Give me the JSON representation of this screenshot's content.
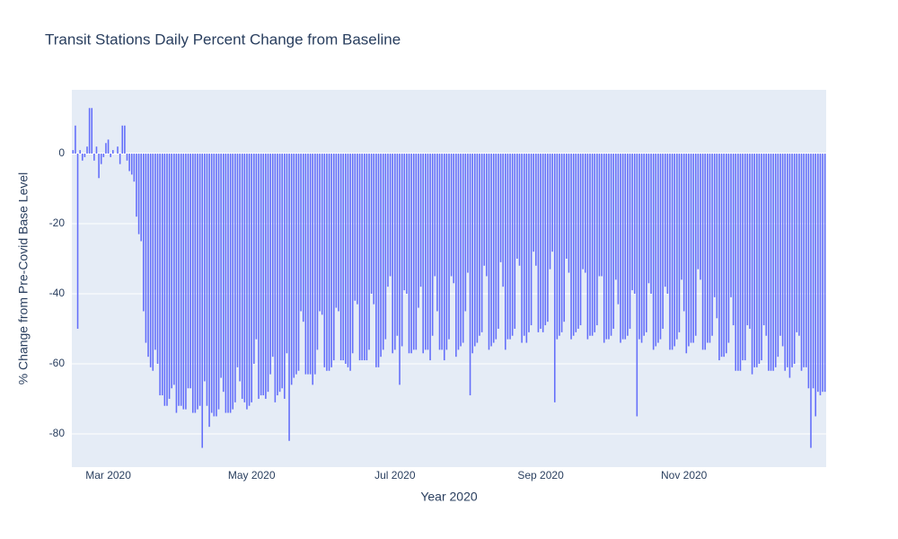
{
  "chart_data": {
    "type": "bar",
    "title": "Transit Stations Daily Percent Change from Baseline",
    "xlabel": "Year 2020",
    "ylabel": "% Change from Pre-Covid Base Level",
    "color": "#636efa",
    "grid": true,
    "xlim": [
      "2020-02-14T12:00:00Z",
      "2020-12-31T12:00:00Z"
    ],
    "xticks": [
      {
        "value": "2020-03-01",
        "label": "Mar 2020"
      },
      {
        "value": "2020-05-01",
        "label": "May 2020"
      },
      {
        "value": "2020-07-01",
        "label": "Jul 2020"
      },
      {
        "value": "2020-09-01",
        "label": "Sep 2020"
      },
      {
        "value": "2020-11-01",
        "label": "Nov 2020"
      }
    ],
    "ylim": [
      -89.5,
      18.2
    ],
    "yticks": [
      0,
      -20,
      -40,
      -60,
      -80
    ],
    "x": [
      "2020-02-15",
      "2020-02-16",
      "2020-02-17",
      "2020-02-18",
      "2020-02-19",
      "2020-02-20",
      "2020-02-21",
      "2020-02-22",
      "2020-02-23",
      "2020-02-24",
      "2020-02-25",
      "2020-02-26",
      "2020-02-27",
      "2020-02-28",
      "2020-02-29",
      "2020-03-01",
      "2020-03-02",
      "2020-03-03",
      "2020-03-04",
      "2020-03-05",
      "2020-03-06",
      "2020-03-07",
      "2020-03-08",
      "2020-03-09",
      "2020-03-10",
      "2020-03-11",
      "2020-03-12",
      "2020-03-13",
      "2020-03-14",
      "2020-03-15",
      "2020-03-16",
      "2020-03-17",
      "2020-03-18",
      "2020-03-19",
      "2020-03-20",
      "2020-03-21",
      "2020-03-22",
      "2020-03-23",
      "2020-03-24",
      "2020-03-25",
      "2020-03-26",
      "2020-03-27",
      "2020-03-28",
      "2020-03-29",
      "2020-03-30",
      "2020-03-31",
      "2020-04-01",
      "2020-04-02",
      "2020-04-03",
      "2020-04-04",
      "2020-04-05",
      "2020-04-06",
      "2020-04-07",
      "2020-04-08",
      "2020-04-09",
      "2020-04-10",
      "2020-04-11",
      "2020-04-12",
      "2020-04-13",
      "2020-04-14",
      "2020-04-15",
      "2020-04-16",
      "2020-04-17",
      "2020-04-18",
      "2020-04-19",
      "2020-04-20",
      "2020-04-21",
      "2020-04-22",
      "2020-04-23",
      "2020-04-24",
      "2020-04-25",
      "2020-04-26",
      "2020-04-27",
      "2020-04-28",
      "2020-04-29",
      "2020-04-30",
      "2020-05-01",
      "2020-05-02",
      "2020-05-03",
      "2020-05-04",
      "2020-05-05",
      "2020-05-06",
      "2020-05-07",
      "2020-05-08",
      "2020-05-09",
      "2020-05-10",
      "2020-05-11",
      "2020-05-12",
      "2020-05-13",
      "2020-05-14",
      "2020-05-15",
      "2020-05-16",
      "2020-05-17",
      "2020-05-18",
      "2020-05-19",
      "2020-05-20",
      "2020-05-21",
      "2020-05-22",
      "2020-05-23",
      "2020-05-24",
      "2020-05-25",
      "2020-05-26",
      "2020-05-27",
      "2020-05-28",
      "2020-05-29",
      "2020-05-30",
      "2020-05-31",
      "2020-06-01",
      "2020-06-02",
      "2020-06-03",
      "2020-06-04",
      "2020-06-05",
      "2020-06-06",
      "2020-06-07",
      "2020-06-08",
      "2020-06-09",
      "2020-06-10",
      "2020-06-11",
      "2020-06-12",
      "2020-06-13",
      "2020-06-14",
      "2020-06-15",
      "2020-06-16",
      "2020-06-17",
      "2020-06-18",
      "2020-06-19",
      "2020-06-20",
      "2020-06-21",
      "2020-06-22",
      "2020-06-23",
      "2020-06-24",
      "2020-06-25",
      "2020-06-26",
      "2020-06-27",
      "2020-06-28",
      "2020-06-29",
      "2020-06-30",
      "2020-07-01",
      "2020-07-02",
      "2020-07-03",
      "2020-07-04",
      "2020-07-05",
      "2020-07-06",
      "2020-07-07",
      "2020-07-08",
      "2020-07-09",
      "2020-07-10",
      "2020-07-11",
      "2020-07-12",
      "2020-07-13",
      "2020-07-14",
      "2020-07-15",
      "2020-07-16",
      "2020-07-17",
      "2020-07-18",
      "2020-07-19",
      "2020-07-20",
      "2020-07-21",
      "2020-07-22",
      "2020-07-23",
      "2020-07-24",
      "2020-07-25",
      "2020-07-26",
      "2020-07-27",
      "2020-07-28",
      "2020-07-29",
      "2020-07-30",
      "2020-07-31",
      "2020-08-01",
      "2020-08-02",
      "2020-08-03",
      "2020-08-04",
      "2020-08-05",
      "2020-08-06",
      "2020-08-07",
      "2020-08-08",
      "2020-08-09",
      "2020-08-10",
      "2020-08-11",
      "2020-08-12",
      "2020-08-13",
      "2020-08-14",
      "2020-08-15",
      "2020-08-16",
      "2020-08-17",
      "2020-08-18",
      "2020-08-19",
      "2020-08-20",
      "2020-08-21",
      "2020-08-22",
      "2020-08-23",
      "2020-08-24",
      "2020-08-25",
      "2020-08-26",
      "2020-08-27",
      "2020-08-28",
      "2020-08-29",
      "2020-08-30",
      "2020-08-31",
      "2020-09-01",
      "2020-09-02",
      "2020-09-03",
      "2020-09-04",
      "2020-09-05",
      "2020-09-06",
      "2020-09-07",
      "2020-09-08",
      "2020-09-09",
      "2020-09-10",
      "2020-09-11",
      "2020-09-12",
      "2020-09-13",
      "2020-09-14",
      "2020-09-15",
      "2020-09-16",
      "2020-09-17",
      "2020-09-18",
      "2020-09-19",
      "2020-09-20",
      "2020-09-21",
      "2020-09-22",
      "2020-09-23",
      "2020-09-24",
      "2020-09-25",
      "2020-09-26",
      "2020-09-27",
      "2020-09-28",
      "2020-09-29",
      "2020-09-30",
      "2020-10-01",
      "2020-10-02",
      "2020-10-03",
      "2020-10-04",
      "2020-10-05",
      "2020-10-06",
      "2020-10-07",
      "2020-10-08",
      "2020-10-09",
      "2020-10-10",
      "2020-10-11",
      "2020-10-12",
      "2020-10-13",
      "2020-10-14",
      "2020-10-15",
      "2020-10-16",
      "2020-10-17",
      "2020-10-18",
      "2020-10-19",
      "2020-10-20",
      "2020-10-21",
      "2020-10-22",
      "2020-10-23",
      "2020-10-24",
      "2020-10-25",
      "2020-10-26",
      "2020-10-27",
      "2020-10-28",
      "2020-10-29",
      "2020-10-30",
      "2020-10-31",
      "2020-11-01",
      "2020-11-02",
      "2020-11-03",
      "2020-11-04",
      "2020-11-05",
      "2020-11-06",
      "2020-11-07",
      "2020-11-08",
      "2020-11-09",
      "2020-11-10",
      "2020-11-11",
      "2020-11-12",
      "2020-11-13",
      "2020-11-14",
      "2020-11-15",
      "2020-11-16",
      "2020-11-17",
      "2020-11-18",
      "2020-11-19",
      "2020-11-20",
      "2020-11-21",
      "2020-11-22",
      "2020-11-23",
      "2020-11-24",
      "2020-11-25",
      "2020-11-26",
      "2020-11-27",
      "2020-11-28",
      "2020-11-29",
      "2020-11-30",
      "2020-12-01",
      "2020-12-02",
      "2020-12-03",
      "2020-12-04",
      "2020-12-05",
      "2020-12-06",
      "2020-12-07",
      "2020-12-08",
      "2020-12-09",
      "2020-12-10",
      "2020-12-11",
      "2020-12-12",
      "2020-12-13",
      "2020-12-14",
      "2020-12-15",
      "2020-12-16",
      "2020-12-17",
      "2020-12-18",
      "2020-12-19",
      "2020-12-20",
      "2020-12-21",
      "2020-12-22",
      "2020-12-23",
      "2020-12-24",
      "2020-12-25",
      "2020-12-26",
      "2020-12-27",
      "2020-12-28",
      "2020-12-29",
      "2020-12-30",
      "2020-12-31"
    ],
    "values": [
      1,
      8,
      -50,
      1,
      -2,
      -1,
      2,
      13,
      13,
      -2,
      2,
      -7,
      -3,
      -1,
      3,
      4,
      -1,
      1,
      0,
      2,
      -3,
      8,
      8,
      -2,
      -5,
      -6,
      -8,
      -18,
      -23,
      -25,
      -45,
      -54,
      -58,
      -61,
      -62,
      -56,
      -60,
      -69,
      -69,
      -72,
      -72,
      -70,
      -67,
      -66,
      -74,
      -72,
      -72,
      -73,
      -73,
      -67,
      -67,
      -74,
      -74,
      -73,
      -72,
      -84,
      -65,
      -72,
      -78,
      -74,
      -75,
      -75,
      -73,
      -64,
      -68,
      -74,
      -74,
      -74,
      -73,
      -71,
      -61,
      -65,
      -70,
      -71,
      -73,
      -72,
      -71,
      -60,
      -53,
      -70,
      -69,
      -69,
      -70,
      -68,
      -63,
      -58,
      -71,
      -69,
      -68,
      -67,
      -70,
      -57,
      -82,
      -66,
      -64,
      -63,
      -62,
      -45,
      -48,
      -63,
      -63,
      -63,
      -66,
      -63,
      -56,
      -45,
      -46,
      -61,
      -62,
      -62,
      -61,
      -59,
      -44,
      -45,
      -59,
      -59,
      -60,
      -61,
      -62,
      -57,
      -42,
      -43,
      -59,
      -59,
      -59,
      -59,
      -56,
      -40,
      -43,
      -61,
      -61,
      -58,
      -56,
      -53,
      -38,
      -35,
      -57,
      -56,
      -52,
      -66,
      -55,
      -39,
      -40,
      -57,
      -57,
      -56,
      -56,
      -44,
      -38,
      -57,
      -56,
      -56,
      -59,
      -52,
      -35,
      -45,
      -56,
      -56,
      -59,
      -56,
      -53,
      -35,
      -37,
      -58,
      -56,
      -55,
      -54,
      -45,
      -34,
      -69,
      -57,
      -55,
      -54,
      -52,
      -51,
      -32,
      -35,
      -56,
      -55,
      -54,
      -53,
      -50,
      -31,
      -38,
      -56,
      -53,
      -53,
      -52,
      -50,
      -30,
      -32,
      -54,
      -52,
      -54,
      -51,
      -49,
      -28,
      -32,
      -51,
      -50,
      -51,
      -49,
      -48,
      -33,
      -28,
      -71,
      -53,
      -52,
      -51,
      -48,
      -30,
      -34,
      -53,
      -52,
      -51,
      -50,
      -49,
      -33,
      -34,
      -53,
      -52,
      -52,
      -51,
      -49,
      -35,
      -35,
      -54,
      -53,
      -53,
      -52,
      -50,
      -36,
      -43,
      -54,
      -53,
      -53,
      -52,
      -50,
      -39,
      -40,
      -75,
      -53,
      -54,
      -52,
      -51,
      -37,
      -40,
      -56,
      -55,
      -54,
      -53,
      -50,
      -38,
      -40,
      -56,
      -56,
      -55,
      -53,
      -51,
      -36,
      -45,
      -57,
      -55,
      -54,
      -54,
      -52,
      -33,
      -36,
      -56,
      -56,
      -54,
      -54,
      -52,
      -41,
      -47,
      -59,
      -58,
      -58,
      -57,
      -54,
      -41,
      -49,
      -62,
      -62,
      -62,
      -59,
      -59,
      -49,
      -50,
      -63,
      -61,
      -61,
      -60,
      -59,
      -49,
      -52,
      -62,
      -62,
      -62,
      -61,
      -58,
      -52,
      -55,
      -62,
      -61,
      -64,
      -61,
      -60,
      -51,
      -52,
      -62,
      -61,
      -61,
      -67,
      -84,
      -67,
      -75,
      -68,
      -69,
      -68,
      -68
    ]
  }
}
